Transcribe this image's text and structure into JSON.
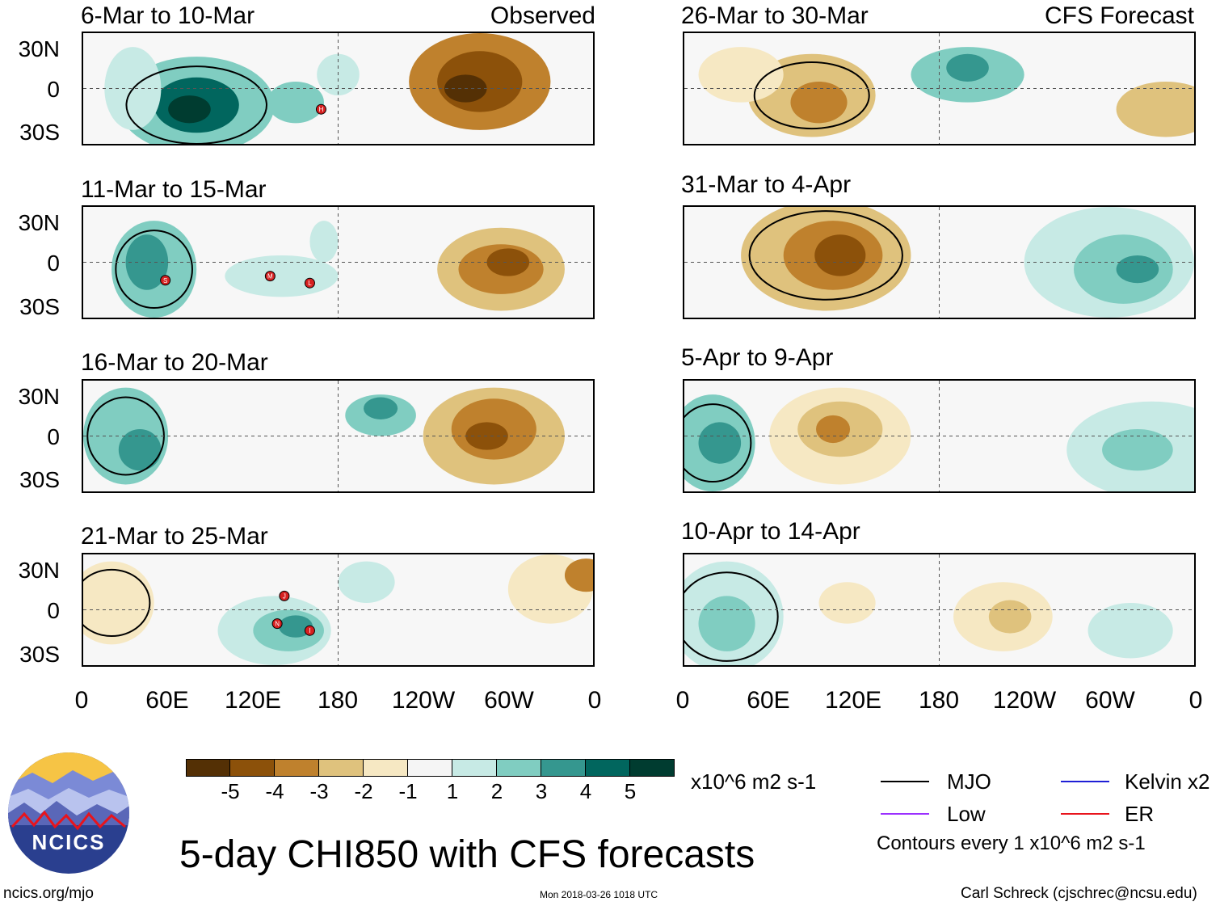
{
  "panels": {
    "left": [
      {
        "title": "6-Mar to 10-Mar",
        "tag": "Observed"
      },
      {
        "title": "11-Mar to 15-Mar",
        "tag": ""
      },
      {
        "title": "16-Mar to 20-Mar",
        "tag": ""
      },
      {
        "title": "21-Mar to 25-Mar",
        "tag": ""
      }
    ],
    "right": [
      {
        "title": "26-Mar to 30-Mar",
        "tag": "CFS Forecast"
      },
      {
        "title": "31-Mar to 4-Apr",
        "tag": ""
      },
      {
        "title": "5-Apr to 9-Apr",
        "tag": ""
      },
      {
        "title": "10-Apr to 14-Apr",
        "tag": ""
      }
    ]
  },
  "axes": {
    "lat_labels": [
      "30N",
      "0",
      "30S"
    ],
    "lon_labels": [
      "0",
      "60E",
      "120E",
      "180",
      "120W",
      "60W",
      "0"
    ]
  },
  "colorbar": {
    "colors": [
      "#543005",
      "#8c510a",
      "#bf812d",
      "#dfc27d",
      "#f6e8c3",
      "#f5f5f5",
      "#c7eae5",
      "#80cdc1",
      "#35978f",
      "#01665e",
      "#003c30"
    ],
    "ticks": [
      "-5",
      "-4",
      "-3",
      "-2",
      "-1",
      "1",
      "2",
      "3",
      "4",
      "5"
    ],
    "units": "x10^6 m2 s-1"
  },
  "legend": {
    "items": [
      {
        "label": "MJO",
        "color": "#000000"
      },
      {
        "label": "Kelvin x2",
        "color": "#1f1fd6"
      },
      {
        "label": "Low",
        "color": "#9b30ff"
      },
      {
        "label": "ER",
        "color": "#e8141c"
      }
    ],
    "contour_note": "Contours every 1 x10^6 m2 s-1"
  },
  "storm_markers": [
    "H",
    "S",
    "M",
    "L",
    "J",
    "N",
    "I"
  ],
  "logo": {
    "text": "NCICS"
  },
  "main_title": "5-day CHI850 with CFS forecasts",
  "footer": {
    "left": "ncics.org/mjo",
    "center": "Mon 2018-03-26 1018 UTC",
    "right": "Carl Schreck (cjschrec@ncsu.edu)"
  }
}
